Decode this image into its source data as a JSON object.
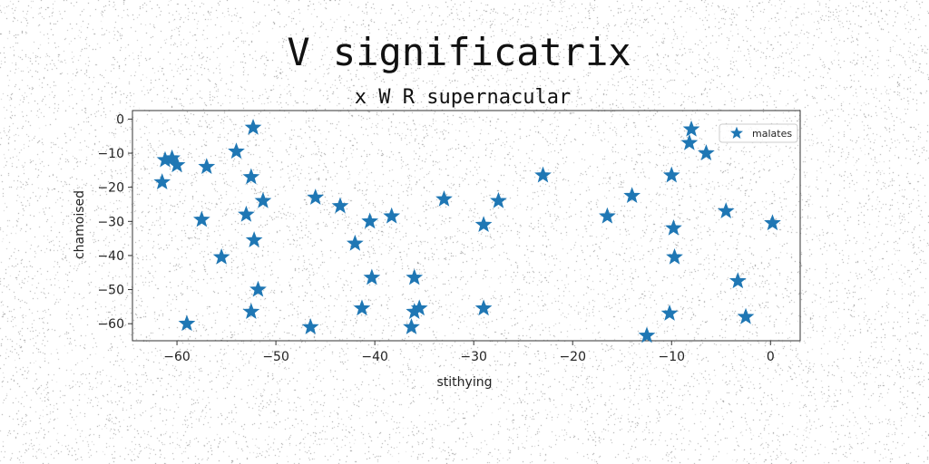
{
  "chart_data": {
    "type": "scatter",
    "title": "V significatrix",
    "subtitle": "x W R supernacular",
    "xlabel": "stithying",
    "ylabel": "chamoised",
    "xlim": [
      -64.5,
      3
    ],
    "ylim": [
      -65,
      2.5
    ],
    "xticks": [
      -60,
      -50,
      -40,
      -30,
      -20,
      -10,
      0
    ],
    "xtick_labels": [
      "−60",
      "−50",
      "−40",
      "−30",
      "−20",
      "−10",
      "0"
    ],
    "yticks": [
      0,
      -10,
      -20,
      -30,
      -40,
      -50,
      -60
    ],
    "ytick_labels": [
      "0",
      "−10",
      "−20",
      "−30",
      "−40",
      "−50",
      "−60"
    ],
    "grid": false,
    "legend": {
      "position": "top-right",
      "entries": [
        "malates"
      ]
    },
    "series": [
      {
        "name": "malates",
        "color": "#1f77b4",
        "marker": "star",
        "points": [
          [
            -61.5,
            -18.5
          ],
          [
            -61.2,
            -12.0
          ],
          [
            -60.5,
            -11.5
          ],
          [
            -60.0,
            -13.5
          ],
          [
            -59.0,
            -60.0
          ],
          [
            -57.5,
            -29.5
          ],
          [
            -57.0,
            -14.0
          ],
          [
            -55.5,
            -40.5
          ],
          [
            -54.0,
            -9.5
          ],
          [
            -53.0,
            -28.0
          ],
          [
            -52.5,
            -56.5
          ],
          [
            -52.5,
            -17.0
          ],
          [
            -52.3,
            -2.5
          ],
          [
            -52.2,
            -35.5
          ],
          [
            -51.8,
            -50.0
          ],
          [
            -51.3,
            -24.0
          ],
          [
            -46.5,
            -61.0
          ],
          [
            -46.0,
            -23.0
          ],
          [
            -43.5,
            -25.5
          ],
          [
            -42.0,
            -36.5
          ],
          [
            -41.3,
            -55.5
          ],
          [
            -40.5,
            -30.0
          ],
          [
            -40.3,
            -46.5
          ],
          [
            -38.3,
            -28.5
          ],
          [
            -36.3,
            -61.0
          ],
          [
            -36.0,
            -46.5
          ],
          [
            -36.0,
            -56.5
          ],
          [
            -35.5,
            -55.5
          ],
          [
            -33.0,
            -23.5
          ],
          [
            -29.0,
            -31.0
          ],
          [
            -29.0,
            -55.5
          ],
          [
            -27.5,
            -24.0
          ],
          [
            -23.0,
            -16.5
          ],
          [
            -16.5,
            -28.5
          ],
          [
            -14.0,
            -22.5
          ],
          [
            -12.5,
            -63.5
          ],
          [
            -10.2,
            -57.0
          ],
          [
            -10.0,
            -16.5
          ],
          [
            -9.8,
            -32.0
          ],
          [
            -9.7,
            -40.5
          ],
          [
            -8.2,
            -7.0
          ],
          [
            -8.0,
            -3.0
          ],
          [
            -6.5,
            -10.0
          ],
          [
            -4.5,
            -27.0
          ],
          [
            -3.3,
            -47.5
          ],
          [
            -2.5,
            -58.0
          ],
          [
            0.2,
            -30.5
          ]
        ]
      }
    ]
  }
}
